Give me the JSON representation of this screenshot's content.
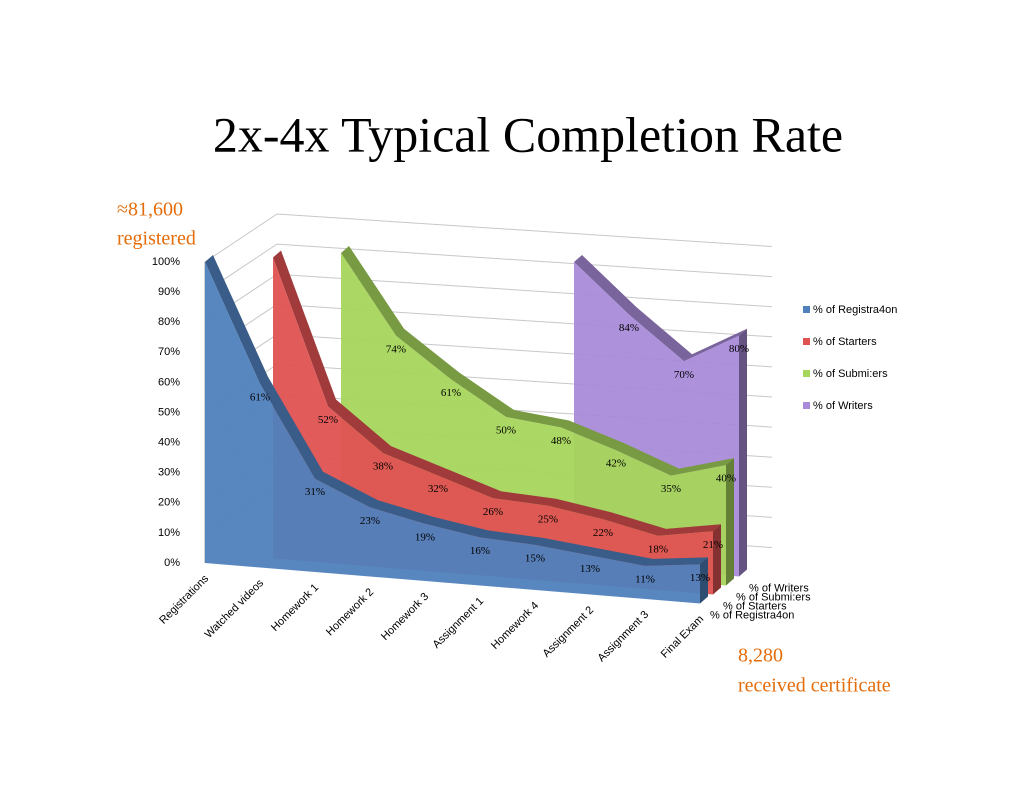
{
  "chart_data": {
    "type": "area3d",
    "title": "2x-4x Typical Completion Rate",
    "categories": [
      "Registrations",
      "Watched videos",
      "Homework 1",
      "Homework 2",
      "Homework 3",
      "Assignment 1",
      "Homework 4",
      "Assignment 2",
      "Assignment 3",
      "Final Exam"
    ],
    "series": [
      {
        "name": "% of Registra4on",
        "color": "#4f81bd",
        "values": [
          100,
          61,
          31,
          23,
          19,
          16,
          15,
          13,
          11,
          13
        ],
        "value_labels": [
          null,
          "61%",
          "31%",
          "23%",
          "19%",
          "16%",
          "15%",
          "13%",
          "11%",
          "13%"
        ]
      },
      {
        "name": "% of Starters",
        "color": "#e05252",
        "values": [
          null,
          100,
          52,
          38,
          32,
          26,
          25,
          22,
          18,
          21
        ],
        "value_labels": [
          null,
          null,
          "52%",
          "38%",
          "32%",
          "26%",
          "25%",
          "22%",
          "18%",
          "21%"
        ]
      },
      {
        "name": "% of Submi:ers",
        "color": "#a6d65c",
        "values": [
          null,
          null,
          100,
          74,
          61,
          50,
          48,
          42,
          35,
          40
        ],
        "value_labels": [
          null,
          null,
          null,
          "74%",
          "61%",
          "50%",
          "48%",
          "42%",
          "35%",
          "40%"
        ]
      },
      {
        "name": "% of Writers",
        "color": "#a98bd9",
        "values": [
          null,
          null,
          null,
          null,
          null,
          null,
          100,
          84,
          70,
          80
        ],
        "value_labels": [
          null,
          null,
          null,
          null,
          null,
          null,
          null,
          "84%",
          "70%",
          "80%"
        ]
      }
    ],
    "ylim": [
      0,
      100
    ],
    "yticks": [
      {
        "value": 0,
        "label": "0%"
      },
      {
        "value": 10,
        "label": "10%"
      },
      {
        "value": 20,
        "label": "20%"
      },
      {
        "value": 30,
        "label": "30%"
      },
      {
        "value": 40,
        "label": "40%"
      },
      {
        "value": 50,
        "label": "50%"
      },
      {
        "value": 60,
        "label": "60%"
      },
      {
        "value": 70,
        "label": "70%"
      },
      {
        "value": 80,
        "label": "80%"
      },
      {
        "value": 90,
        "label": "90%"
      },
      {
        "value": 100,
        "label": "100%"
      }
    ],
    "grid": true,
    "legend": "right",
    "annotations": [
      [
        "≈81,600",
        "registered"
      ],
      [
        "8,280",
        "received certificate"
      ]
    ]
  }
}
